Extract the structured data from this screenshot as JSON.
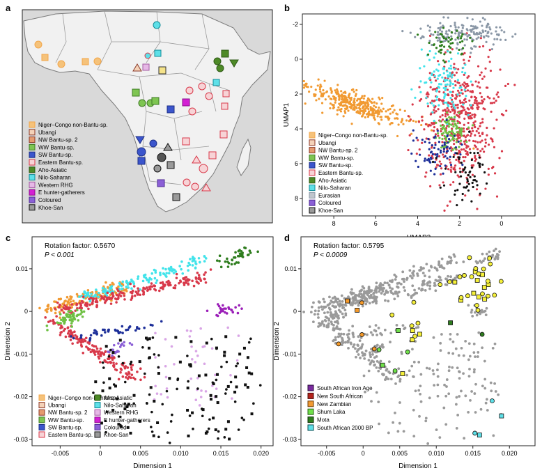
{
  "panels": {
    "a": {
      "letter": "a",
      "legend": [
        {
          "label": "Niger–Congo non-Bantu-sp.",
          "color": "#f5c27a",
          "edge": "#f2a64a"
        },
        {
          "label": "Ubangi",
          "color": "#f4d2b8",
          "edge": "#8b3a2a"
        },
        {
          "label": "NW Bantu-sp. 2",
          "color": "#e59b6f",
          "edge": "#8b3a2a"
        },
        {
          "label": "WW Bantu-sp.",
          "color": "#7ec552",
          "edge": "#3f7a25"
        },
        {
          "label": "SW Bantu-sp.",
          "color": "#3b55cc",
          "edge": "#1d2f86"
        },
        {
          "label": "Eastern Bantu-sp.",
          "color": "#f7d3d6",
          "edge": "#d8394a"
        },
        {
          "label": "Afro-Asiatic",
          "color": "#4e8a27",
          "edge": "#2f5a16"
        },
        {
          "label": "Nilo-Saharan",
          "color": "#5ee0e8",
          "edge": "#118a96"
        },
        {
          "label": "Western RHG",
          "color": "#e6b8e6",
          "edge": "#a35aa3"
        },
        {
          "label": "E hunter-gatherers",
          "color": "#d320d3",
          "edge": "#8a0d8a"
        },
        {
          "label": "Coloured",
          "color": "#8b5fd6",
          "edge": "#4f2c94"
        },
        {
          "label": "Khoe-San",
          "color": "#9a9a9a",
          "edge": "#111111"
        }
      ]
    },
    "b": {
      "letter": "b",
      "chart_data": {
        "type": "scatter",
        "xlabel": "UMAP2",
        "ylabel": "UMAP1",
        "x_ticks": [
          "8",
          "6",
          "4",
          "2",
          "0"
        ],
        "y_ticks": [
          "-2",
          "0",
          "2",
          "4",
          "6",
          "8"
        ],
        "xlim": [
          9.5,
          -1.6
        ],
        "ylim": [
          -2.6,
          9.0
        ],
        "series": [
          {
            "name": "Niger–Congo non-Bantu-sp.",
            "color": "#f19a32",
            "cx": 7.0,
            "cy": 2.6,
            "sx": 1.4,
            "sy": 0.6,
            "n": 380
          },
          {
            "name": "Eastern Bantu-sp.",
            "color": "#d8394a",
            "cx": 2.0,
            "cy": 3.5,
            "sx": 0.9,
            "sy": 1.8,
            "n": 520
          },
          {
            "name": "Eurasian",
            "color": "#8a97a6",
            "cx": 1.8,
            "cy": -1.5,
            "sx": 1.0,
            "sy": 0.4,
            "n": 160
          },
          {
            "name": "Nilo-Saharan",
            "color": "#42e3ea",
            "cx": 2.7,
            "cy": 1.6,
            "sx": 0.6,
            "sy": 1.0,
            "n": 110
          },
          {
            "name": "WW Bantu-sp.",
            "color": "#6ec043",
            "cx": 2.4,
            "cy": 4.1,
            "sx": 0.4,
            "sy": 0.5,
            "n": 90
          },
          {
            "name": "SW Bantu-sp.",
            "color": "#1d2f99",
            "cx": 3.2,
            "cy": 5.3,
            "sx": 0.7,
            "sy": 0.6,
            "n": 70
          },
          {
            "name": "Afro-Asiatic",
            "color": "#2e7d1e",
            "cx": 2.6,
            "cy": -0.9,
            "sx": 0.5,
            "sy": 0.4,
            "n": 50
          },
          {
            "name": "Khoe-San",
            "color": "#111111",
            "cx": 1.8,
            "cy": 6.8,
            "sx": 0.5,
            "sy": 0.9,
            "n": 60
          }
        ],
        "legend": [
          {
            "label": "Niger–Congo non-Bantu-sp.",
            "color": "#f5c27a",
            "edge": "#f2a64a"
          },
          {
            "label": "Ubangi",
            "color": "#f4d2b8",
            "edge": "#8b3a2a"
          },
          {
            "label": "NW Bantu-sp. 2",
            "color": "#e59b6f",
            "edge": "#8b3a2a"
          },
          {
            "label": "WW Bantu-sp.",
            "color": "#7ec552",
            "edge": "#3f7a25"
          },
          {
            "label": "SW Bantu-sp.",
            "color": "#3b55cc",
            "edge": "#1d2f86"
          },
          {
            "label": "Eastern Bantu-sp.",
            "color": "#f7d3d6",
            "edge": "#d8394a"
          },
          {
            "label": "Afro-Asiatic",
            "color": "#4e8a27",
            "edge": "#2f5a16"
          },
          {
            "label": "Nilo-Saharan",
            "color": "#5ee0e8",
            "edge": "#118a96"
          },
          {
            "label": "Eurasian",
            "color": "#bfc5cc",
            "edge": "#8a97a6"
          },
          {
            "label": "Coloured",
            "color": "#8b5fd6",
            "edge": "#4f2c94"
          },
          {
            "label": "Khoe-San",
            "color": "#9a9a9a",
            "edge": "#111111"
          }
        ]
      }
    },
    "c": {
      "letter": "c",
      "annotation_1": "Rotation factor: 0.5670",
      "annotation_2": "P < 0.001",
      "chart_data": {
        "type": "scatter",
        "xlabel": "Dimension 1",
        "ylabel": "Dimension 2",
        "x_ticks": [
          "-0.005",
          "0",
          "0.005",
          "0.010",
          "0.015",
          "0.020"
        ],
        "y_ticks": [
          "0.01",
          "0",
          "-0.01",
          "-0.02",
          "-0.03"
        ],
        "xlim": [
          -0.0085,
          0.0215
        ],
        "ylim": [
          -0.0315,
          0.0175
        ],
        "series": [
          {
            "name": "Niger–Congo non-Bantu-sp.",
            "color": "#f19a32",
            "x0": -0.0065,
            "y0": 0.0005,
            "x1": 0.003,
            "y1": 0.006,
            "n": 140
          },
          {
            "name": "Nilo-Saharan",
            "color": "#42e3ea",
            "x0": -0.002,
            "y0": 0.003,
            "x1": 0.013,
            "y1": 0.0125,
            "n": 140
          },
          {
            "name": "Eastern Bantu-sp.",
            "color": "#d8394a",
            "x0": -0.005,
            "y0": 0.0005,
            "x1": 0.013,
            "y1": 0.008,
            "n": 200
          },
          {
            "name": "Eastern Bantu-sp.",
            "color": "#d8394a",
            "x0": -0.006,
            "y0": -0.002,
            "x1": 0.0045,
            "y1": -0.016,
            "n": 160
          },
          {
            "name": "Afro-Asiatic",
            "color": "#2e7d1e",
            "x0": 0.0155,
            "y0": 0.0115,
            "x1": 0.0185,
            "y1": 0.014,
            "n": 40
          },
          {
            "name": "WW Bantu-sp.",
            "color": "#6ec043",
            "x0": -0.0055,
            "y0": -0.003,
            "x1": -0.0025,
            "y1": 0.0,
            "n": 50
          },
          {
            "name": "SW Bantu-sp.",
            "color": "#1d2f99",
            "x0": -0.003,
            "y0": -0.006,
            "x1": 0.007,
            "y1": -0.003,
            "n": 45
          },
          {
            "name": "Coloured",
            "color": "#8b5fd6",
            "x0": 0.001,
            "y0": -0.0095,
            "x1": 0.003,
            "y1": -0.008,
            "n": 20
          },
          {
            "name": "E hunter-gatherers",
            "color": "#9b1fb8",
            "x0": 0.0145,
            "y0": 0.0,
            "x1": 0.017,
            "y1": 0.0005,
            "n": 25
          },
          {
            "name": "Western RHG",
            "color": "#d9a5e6",
            "x0": 0.007,
            "y0": -0.022,
            "x1": 0.017,
            "y1": -0.004,
            "n": 45
          },
          {
            "name": "Khoe-San",
            "color": "#111111",
            "x0": 0.0,
            "y0": -0.03,
            "x1": 0.019,
            "y1": -0.006,
            "n": 150
          }
        ],
        "legend": [
          {
            "label": "Niger–Congo non-Bantu-sp.",
            "color": "#f5c27a",
            "edge": "#f2a64a"
          },
          {
            "label": "Ubangi",
            "color": "#f4d2b8",
            "edge": "#8b3a2a"
          },
          {
            "label": "NW Bantu-sp. 2",
            "color": "#e59b6f",
            "edge": "#8b3a2a"
          },
          {
            "label": "WW Bantu-sp.",
            "color": "#7ec552",
            "edge": "#3f7a25"
          },
          {
            "label": "SW Bantu-sp.",
            "color": "#3b55cc",
            "edge": "#1d2f86"
          },
          {
            "label": "Eastern Bantu-sp.",
            "color": "#f7d3d6",
            "edge": "#d8394a"
          },
          {
            "label": "Afro-Asiatic",
            "color": "#4e8a27",
            "edge": "#2f5a16"
          },
          {
            "label": "Nilo-Saharan",
            "color": "#5ee0e8",
            "edge": "#118a96"
          },
          {
            "label": "Western RHG",
            "color": "#e6b8e6",
            "edge": "#a35aa3"
          },
          {
            "label": "E hunter-gatherers",
            "color": "#d320d3",
            "edge": "#8a0d8a"
          },
          {
            "label": "Coloured",
            "color": "#8b5fd6",
            "edge": "#4f2c94"
          },
          {
            "label": "Khoe-San",
            "color": "#9a9a9a",
            "edge": "#111111"
          }
        ]
      }
    },
    "d": {
      "letter": "d",
      "annotation_1": "Rotation factor: 0.5795",
      "annotation_2": "P < 0.0009",
      "chart_data": {
        "type": "scatter",
        "xlabel": "Dimension 1",
        "ylabel": "Dimension 2",
        "x_ticks": [
          "-0.005",
          "0",
          "0.005",
          "0.010",
          "0.015",
          "0.020"
        ],
        "y_ticks": [
          "0.01",
          "0",
          "-0.01",
          "-0.02",
          "-0.03"
        ],
        "xlim": [
          -0.0085,
          0.0235
        ],
        "ylim": [
          -0.0315,
          0.0175
        ],
        "background_color": "#9a9a9a",
        "ancient": [
          {
            "name": "South African Iron Age",
            "color": "#f5f03a",
            "x": 0.0155,
            "y": 0.0065,
            "n": 30
          },
          {
            "name": "New South African",
            "color": "#f5f03a",
            "x": 0.0065,
            "y": -0.004,
            "n": 10
          },
          {
            "name": "New Zambian",
            "color": "#f59a2a",
            "x": 0.0,
            "y": -0.003,
            "n": 6
          },
          {
            "name": "Shum Laka",
            "color": "#6fe04a",
            "x": 0.0035,
            "y": -0.008,
            "n": 5
          },
          {
            "name": "Mota",
            "color": "#2e7d1e",
            "x": 0.0155,
            "y": -0.002,
            "n": 2
          },
          {
            "name": "South African 2000 BP",
            "color": "#5ee0e8",
            "x": 0.016,
            "y": -0.028,
            "n": 4
          }
        ],
        "legend": [
          {
            "label": "South African Iron Age",
            "color": "#7a2aa0",
            "edge": "#2a0e3a"
          },
          {
            "label": "New South African",
            "color": "#b4231c",
            "edge": "#4a0c08"
          },
          {
            "label": "New Zambian",
            "color": "#f19a32",
            "edge": "#6a3b08"
          },
          {
            "label": "Shum Laka",
            "color": "#6fe04a",
            "edge": "#2a6016"
          },
          {
            "label": "Mota",
            "color": "#2e7d1e",
            "edge": "#0e2e08"
          },
          {
            "label": "South African 2000 BP",
            "color": "#5ee0e8",
            "edge": "#0e4a50"
          }
        ]
      }
    }
  }
}
